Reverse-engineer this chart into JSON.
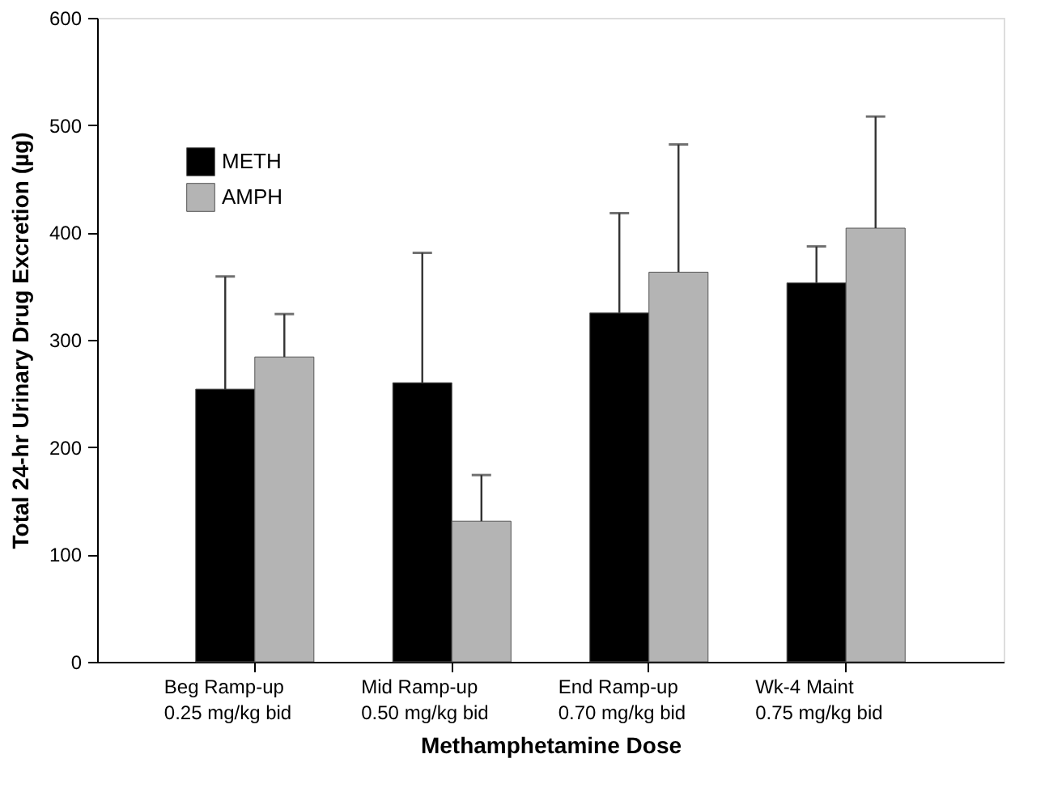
{
  "chart_data": {
    "type": "bar",
    "xlabel": "Methamphetamine Dose",
    "ylabel": "Total 24-hr Urinary Drug Excretion (µg)",
    "categories": [
      "Beg Ramp-up\n0.25 mg/kg bid",
      "Mid Ramp-up\n0.50 mg/kg bid",
      "End Ramp-up\n0.70 mg/kg bid",
      "Wk-4 Maint\n0.75 mg/kg bid"
    ],
    "series": [
      {
        "name": "METH",
        "color": "#000000",
        "values": [
          254,
          260,
          325,
          353
        ],
        "errors": [
          [
            254,
            359
          ],
          [
            260,
            381
          ],
          [
            325,
            418
          ],
          [
            353,
            387
          ]
        ]
      },
      {
        "name": "AMPH",
        "color": "#b4b4b4",
        "values": [
          284,
          131,
          363,
          404
        ],
        "errors": [
          [
            284,
            324
          ],
          [
            131,
            174
          ],
          [
            363,
            482
          ],
          [
            404,
            508
          ]
        ]
      }
    ],
    "ylim": [
      0,
      600
    ],
    "yticks": [
      0,
      100,
      200,
      300,
      400,
      500,
      600
    ],
    "grid": false,
    "legend": "top left"
  }
}
